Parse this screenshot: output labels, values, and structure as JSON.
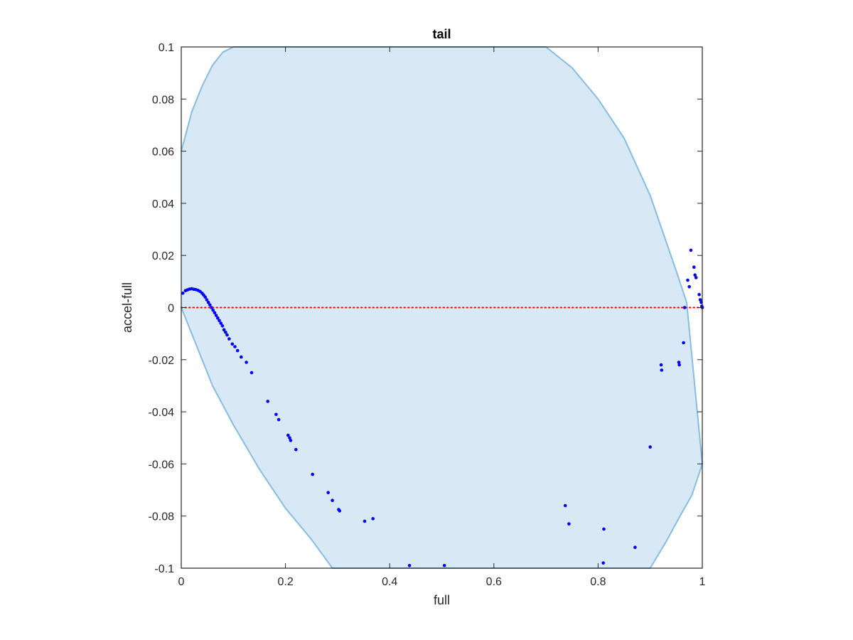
{
  "chart_data": {
    "type": "scatter",
    "title": "tail",
    "xlabel": "full",
    "ylabel": "accel-full",
    "xlim": [
      0,
      1
    ],
    "ylim": [
      -0.1,
      0.1
    ],
    "xticks": [
      0,
      0.2,
      0.4,
      0.6,
      0.8,
      1
    ],
    "xtick_labels": [
      "0",
      "0.2",
      "0.4",
      "0.6",
      "0.8",
      "1"
    ],
    "yticks": [
      -0.1,
      -0.08,
      -0.06,
      -0.04,
      -0.02,
      0,
      0.02,
      0.04,
      0.06,
      0.08,
      0.1
    ],
    "ytick_labels": [
      "-0.1",
      "-0.08",
      "-0.06",
      "-0.04",
      "-0.02",
      "0",
      "0.02",
      "0.04",
      "0.06",
      "0.08",
      "0.1"
    ],
    "grid": false,
    "reference_line": {
      "y": 0,
      "color": "#ff0000",
      "style": "dotted"
    },
    "region": {
      "description": "filled feasible region between curves",
      "fill_color": "#d8e8f4",
      "edge_color": "#86bde0",
      "upper_boundary": [
        [
          0,
          0.06
        ],
        [
          0.02,
          0.075
        ],
        [
          0.04,
          0.085
        ],
        [
          0.06,
          0.093
        ],
        [
          0.08,
          0.098
        ],
        [
          0.1,
          0.1
        ],
        [
          0.7,
          0.1
        ],
        [
          0.75,
          0.092
        ],
        [
          0.8,
          0.08
        ],
        [
          0.85,
          0.065
        ],
        [
          0.9,
          0.043
        ],
        [
          0.95,
          0.014
        ],
        [
          0.97,
          0.002
        ],
        [
          1.0,
          -0.06
        ]
      ],
      "lower_boundary": [
        [
          0,
          0.0
        ],
        [
          0.03,
          -0.015
        ],
        [
          0.06,
          -0.03
        ],
        [
          0.1,
          -0.045
        ],
        [
          0.15,
          -0.062
        ],
        [
          0.2,
          -0.077
        ],
        [
          0.25,
          -0.089
        ],
        [
          0.29,
          -0.1
        ],
        [
          0.9,
          -0.1
        ],
        [
          0.93,
          -0.09
        ],
        [
          0.96,
          -0.079
        ],
        [
          0.98,
          -0.072
        ],
        [
          1.0,
          -0.06
        ]
      ]
    },
    "series": [
      {
        "color": "#0000ff",
        "points": [
          [
            0.003,
            0.0055
          ],
          [
            0.008,
            0.0065
          ],
          [
            0.012,
            0.0068
          ],
          [
            0.016,
            0.0071
          ],
          [
            0.02,
            0.0072
          ],
          [
            0.024,
            0.007
          ],
          [
            0.028,
            0.0069
          ],
          [
            0.032,
            0.0066
          ],
          [
            0.036,
            0.0062
          ],
          [
            0.04,
            0.0055
          ],
          [
            0.043,
            0.0048
          ],
          [
            0.046,
            0.004
          ],
          [
            0.049,
            0.003
          ],
          [
            0.052,
            0.002
          ],
          [
            0.055,
            0.001
          ],
          [
            0.058,
            0.0
          ],
          [
            0.061,
            -0.001
          ],
          [
            0.064,
            -0.002
          ],
          [
            0.067,
            -0.003
          ],
          [
            0.07,
            -0.004
          ],
          [
            0.073,
            -0.005
          ],
          [
            0.076,
            -0.006
          ],
          [
            0.079,
            -0.007
          ],
          [
            0.082,
            -0.0085
          ],
          [
            0.085,
            -0.0095
          ],
          [
            0.088,
            -0.0105
          ],
          [
            0.092,
            -0.012
          ],
          [
            0.098,
            -0.014
          ],
          [
            0.103,
            -0.015
          ],
          [
            0.108,
            -0.0165
          ],
          [
            0.115,
            -0.019
          ],
          [
            0.125,
            -0.021
          ],
          [
            0.135,
            -0.025
          ],
          [
            0.166,
            -0.036
          ],
          [
            0.182,
            -0.041
          ],
          [
            0.187,
            -0.043
          ],
          [
            0.205,
            -0.049
          ],
          [
            0.208,
            -0.05
          ],
          [
            0.21,
            -0.051
          ],
          [
            0.22,
            -0.0545
          ],
          [
            0.252,
            -0.064
          ],
          [
            0.282,
            -0.071
          ],
          [
            0.29,
            -0.074
          ],
          [
            0.302,
            -0.0775
          ],
          [
            0.304,
            -0.078
          ],
          [
            0.352,
            -0.082
          ],
          [
            0.368,
            -0.081
          ],
          [
            0.438,
            -0.099
          ],
          [
            0.505,
            -0.099
          ],
          [
            0.737,
            -0.076
          ],
          [
            0.744,
            -0.083
          ],
          [
            0.811,
            -0.085
          ],
          [
            0.81,
            -0.098
          ],
          [
            0.871,
            -0.092
          ],
          [
            0.9,
            -0.0535
          ],
          [
            0.921,
            -0.022
          ],
          [
            0.922,
            -0.024
          ],
          [
            0.955,
            -0.021
          ],
          [
            0.956,
            -0.022
          ],
          [
            0.964,
            -0.0135
          ],
          [
            0.966,
            0.0
          ],
          [
            0.972,
            0.0105
          ],
          [
            0.975,
            0.008
          ],
          [
            0.978,
            0.022
          ],
          [
            0.984,
            0.0155
          ],
          [
            0.986,
            0.0125
          ],
          [
            0.988,
            0.0115
          ],
          [
            0.994,
            0.005
          ],
          [
            0.996,
            0.003
          ],
          [
            0.998,
            0.002
          ],
          [
            0.999,
            0.0005
          ],
          [
            1.0,
            0.0
          ]
        ]
      }
    ]
  }
}
